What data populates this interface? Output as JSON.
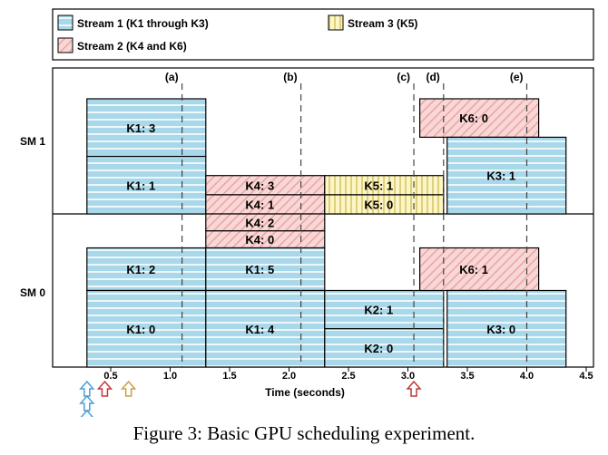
{
  "chart_data": {
    "type": "gantt",
    "title": "",
    "xlabel": "Time (seconds)",
    "xlim": [
      0.2,
      4.55
    ],
    "xticks": [
      "0.5",
      "1.0",
      "1.5",
      "2.0",
      "2.5",
      "3.0",
      "3.5",
      "4.0",
      "4.5"
    ],
    "xtick_values": [
      0.5,
      1.0,
      1.5,
      2.0,
      2.5,
      3.0,
      3.5,
      4.0,
      4.5
    ],
    "rows": [
      "SM 1",
      "SM 0"
    ],
    "legend": [
      {
        "stream": 1,
        "label": "Stream 1 (K1 through K3)",
        "color": "#a8d8ea"
      },
      {
        "stream": 2,
        "label": "Stream 2 (K4 and K6)",
        "color": "#f9d7d7"
      },
      {
        "stream": 3,
        "label": "Stream 3 (K5)",
        "color": "#fdf5c4"
      }
    ],
    "events": [
      {
        "label": "(a)",
        "time": 1.1
      },
      {
        "label": "(b)",
        "time": 2.1
      },
      {
        "label": "(c)",
        "time": 3.05
      },
      {
        "label": "(d)",
        "time": 3.3
      },
      {
        "label": "(e)",
        "time": 4.0
      }
    ],
    "blocks": [
      {
        "label": "K1: 3",
        "sm": 1,
        "stream": 1,
        "start": 0.3,
        "end": 1.3,
        "slot_lo": 0.5,
        "slot_hi": 1.0
      },
      {
        "label": "K1: 1",
        "sm": 1,
        "stream": 1,
        "start": 0.3,
        "end": 1.3,
        "slot_lo": 0.0,
        "slot_hi": 0.5
      },
      {
        "label": "K4: 3",
        "sm": 1,
        "stream": 2,
        "start": 1.3,
        "end": 2.3,
        "slot_lo": 0.166,
        "slot_hi": 0.333
      },
      {
        "label": "K4: 1",
        "sm": 1,
        "stream": 2,
        "start": 1.3,
        "end": 2.3,
        "slot_lo": 0.0,
        "slot_hi": 0.166
      },
      {
        "label": "K5: 1",
        "sm": 1,
        "stream": 3,
        "start": 2.3,
        "end": 3.3,
        "slot_lo": 0.166,
        "slot_hi": 0.333
      },
      {
        "label": "K5: 0",
        "sm": 1,
        "stream": 3,
        "start": 2.3,
        "end": 3.3,
        "slot_lo": 0.0,
        "slot_hi": 0.166
      },
      {
        "label": "K6: 0",
        "sm": 1,
        "stream": 2,
        "start": 3.1,
        "end": 4.1,
        "slot_lo": 0.666,
        "slot_hi": 1.0
      },
      {
        "label": "K3: 1",
        "sm": 1,
        "stream": 1,
        "start": 3.33,
        "end": 4.33,
        "slot_lo": 0.0,
        "slot_hi": 0.666
      },
      {
        "label": "K1: 2",
        "sm": 0,
        "stream": 1,
        "start": 0.3,
        "end": 1.3,
        "slot_lo": 0.5,
        "slot_hi": 0.778
      },
      {
        "label": "K1: 0",
        "sm": 0,
        "stream": 1,
        "start": 0.3,
        "end": 1.3,
        "slot_lo": 0.0,
        "slot_hi": 0.5
      },
      {
        "label": "K4: 2",
        "sm": 0,
        "stream": 2,
        "start": 1.3,
        "end": 2.3,
        "slot_lo": 0.889,
        "slot_hi": 1.0
      },
      {
        "label": "K4: 0",
        "sm": 0,
        "stream": 2,
        "start": 1.3,
        "end": 2.3,
        "slot_lo": 0.778,
        "slot_hi": 0.889
      },
      {
        "label": "K1: 5",
        "sm": 0,
        "stream": 1,
        "start": 1.3,
        "end": 2.3,
        "slot_lo": 0.5,
        "slot_hi": 0.778
      },
      {
        "label": "K1: 4",
        "sm": 0,
        "stream": 1,
        "start": 1.3,
        "end": 2.3,
        "slot_lo": 0.0,
        "slot_hi": 0.5
      },
      {
        "label": "K2: 1",
        "sm": 0,
        "stream": 1,
        "start": 2.3,
        "end": 3.3,
        "slot_lo": 0.25,
        "slot_hi": 0.5
      },
      {
        "label": "K2: 0",
        "sm": 0,
        "stream": 1,
        "start": 2.3,
        "end": 3.3,
        "slot_lo": 0.0,
        "slot_hi": 0.25
      },
      {
        "label": "K6: 1",
        "sm": 0,
        "stream": 2,
        "start": 3.1,
        "end": 4.1,
        "slot_lo": 0.5,
        "slot_hi": 0.778
      },
      {
        "label": "K3: 0",
        "sm": 0,
        "stream": 1,
        "start": 3.33,
        "end": 4.33,
        "slot_lo": 0.0,
        "slot_hi": 0.5
      }
    ],
    "release_arrows": [
      {
        "time": 0.3,
        "stream": 1,
        "count": 3
      },
      {
        "time": 0.45,
        "stream": 2,
        "count": 1
      },
      {
        "time": 0.65,
        "stream": 3,
        "count": 1
      },
      {
        "time": 3.05,
        "stream": 2,
        "count": 1
      }
    ]
  },
  "caption": "Figure 3: Basic GPU scheduling experiment.",
  "colors": {
    "stream1_fill": "#a8d8ea",
    "stream2_fill": "#f9d7d7",
    "stream2_hatch": "#e8a0a0",
    "stream3_fill": "#fdf5c4",
    "stream3_hatch": "#c8b850",
    "arrow_stream1": "#4a9fd8",
    "arrow_stream2": "#c0393b",
    "arrow_stream3": "#c8a048"
  }
}
